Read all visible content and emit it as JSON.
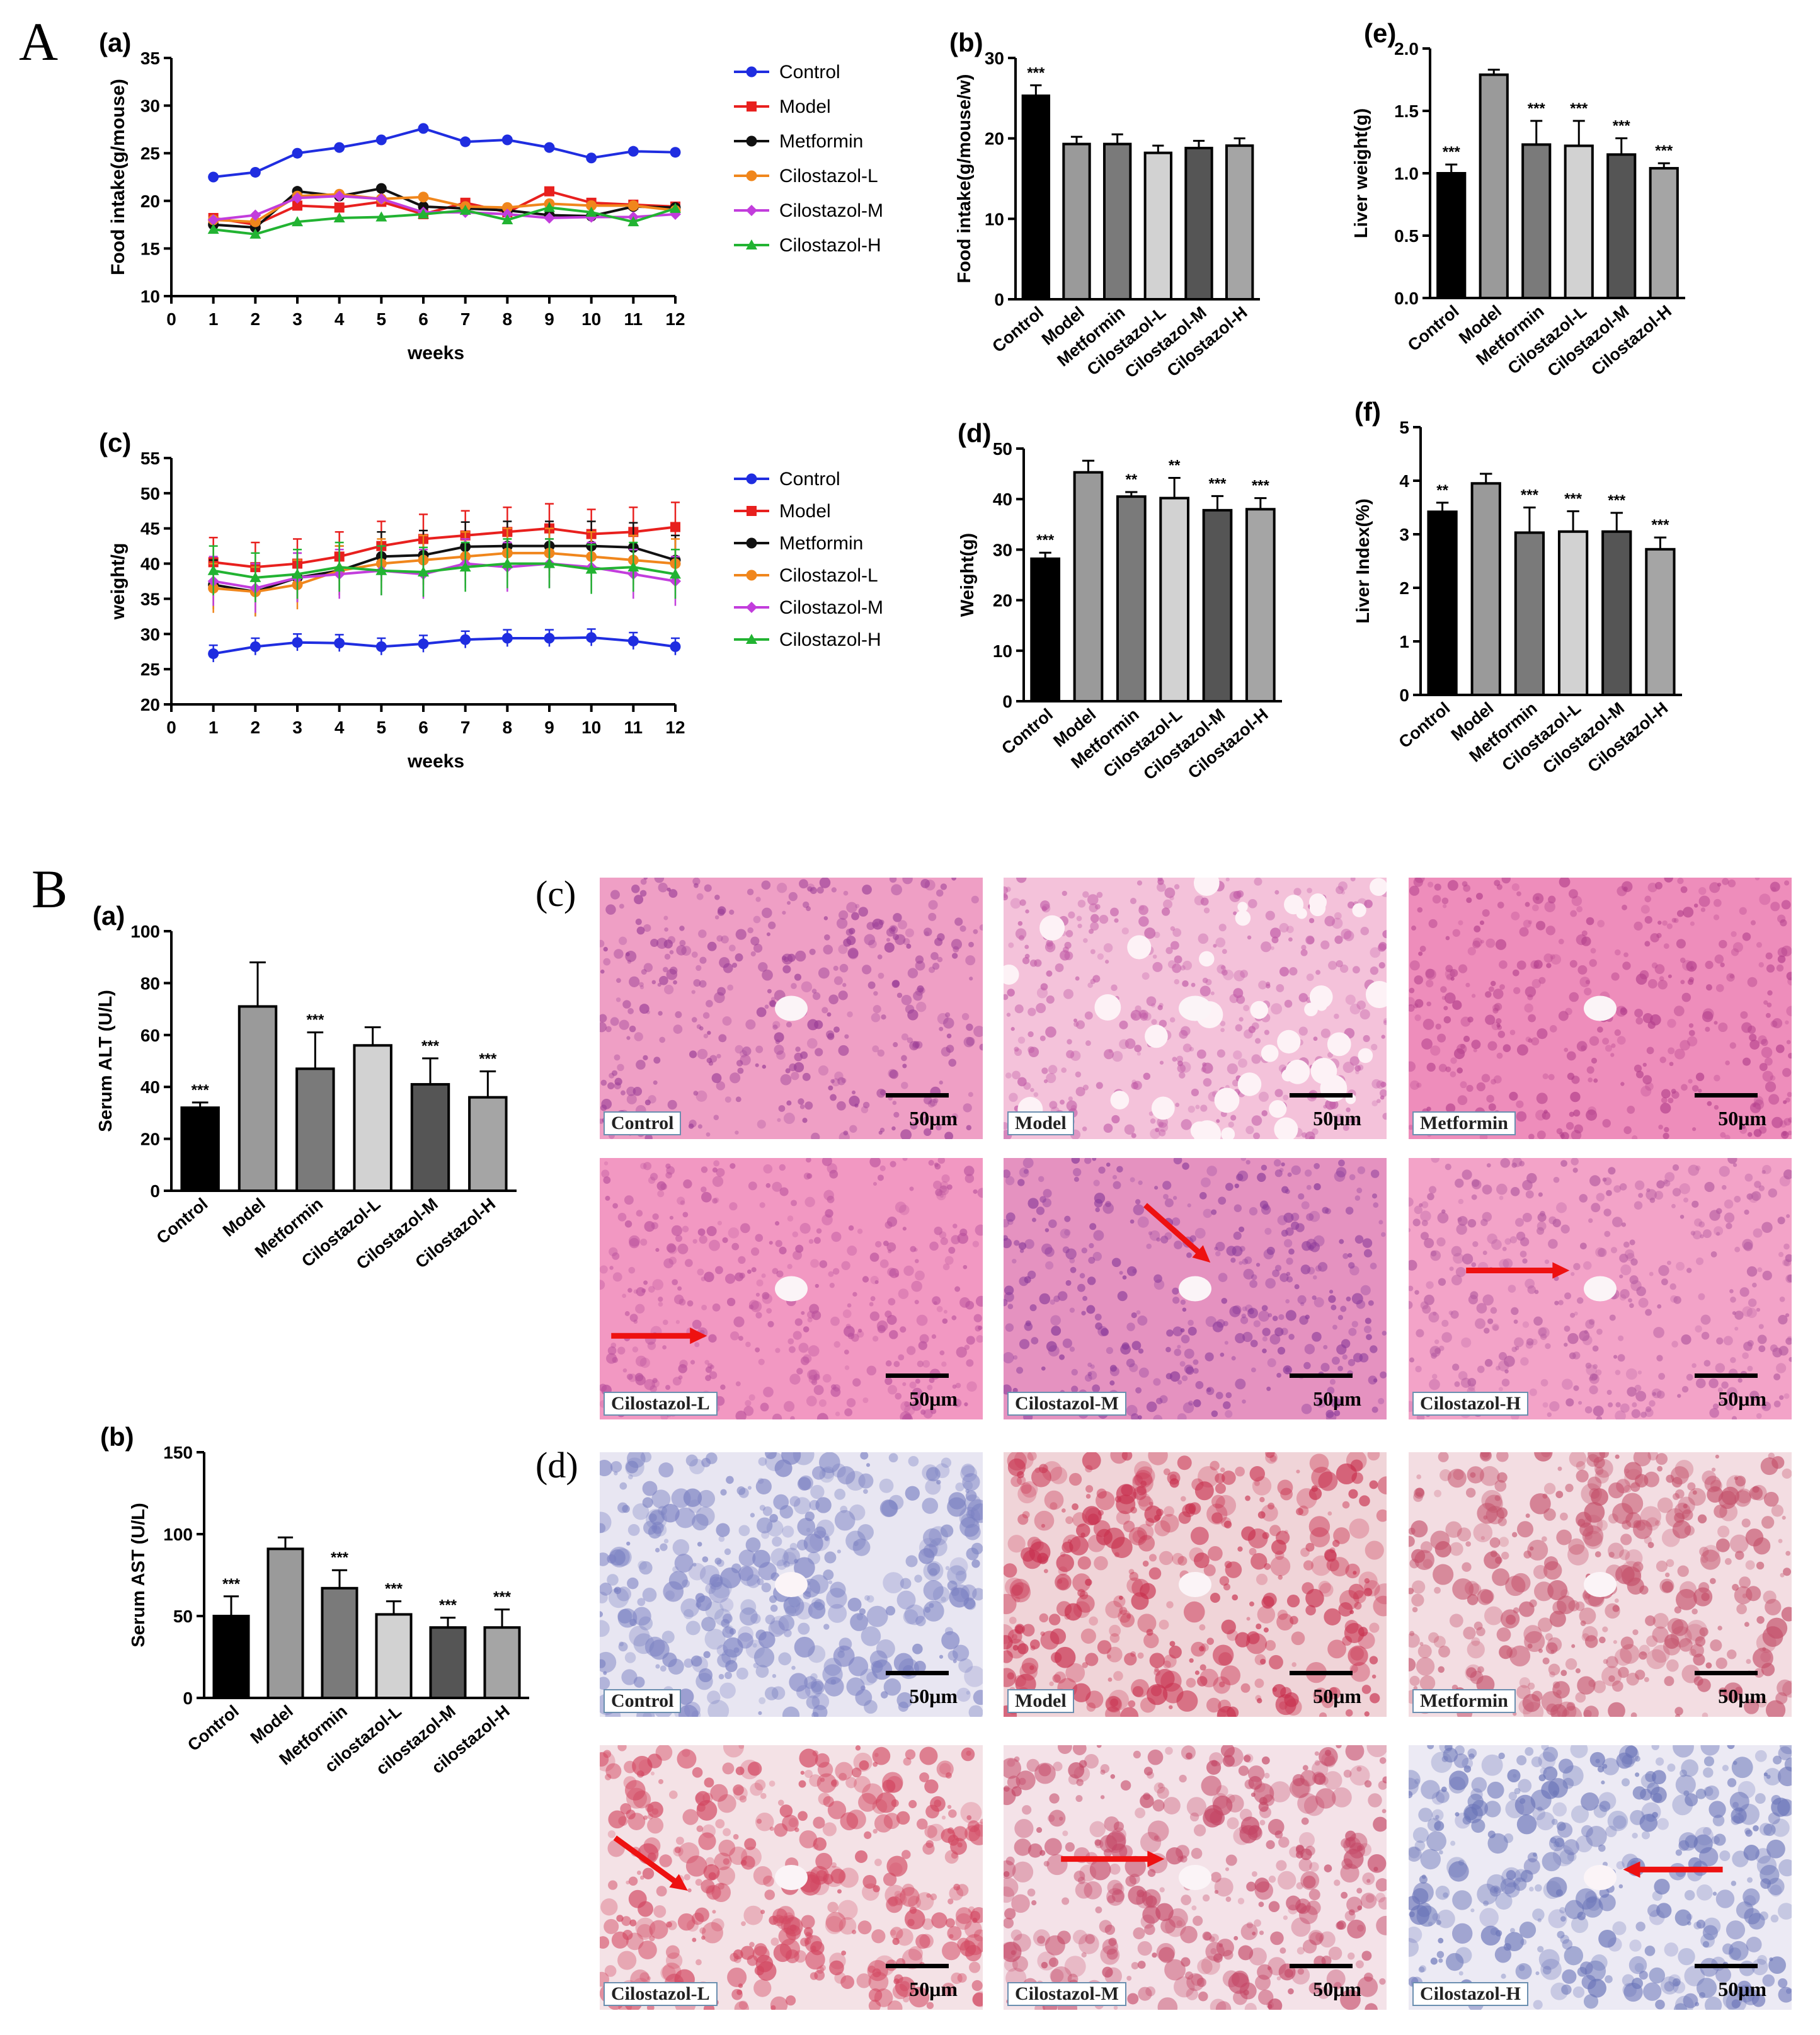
{
  "section_labels": {
    "A": "A",
    "B": "B"
  },
  "colors": {
    "Control": "#1f2de0",
    "Model": "#e8201e",
    "Metformin": "#111111",
    "Cilostazol-L": "#f0861c",
    "Cilostazol-M": "#c23ddc",
    "Cilostazol-H": "#22b332",
    "bars": [
      "#000000",
      "#9a9a9a",
      "#7a7a7a",
      "#d2d2d2",
      "#555555",
      "#a5a5a5"
    ]
  },
  "chart_data": [
    {
      "panel": "(a)",
      "type": "line",
      "xlabel": "weeks",
      "ylabel": "Food intake(g/mouse)",
      "xlim": [
        0,
        12
      ],
      "ylim": [
        10,
        35
      ],
      "xticks": [
        "0",
        "1",
        "2",
        "3",
        "4",
        "5",
        "6",
        "7",
        "8",
        "9",
        "10",
        "11",
        "12"
      ],
      "yticks": [
        "10",
        "15",
        "20",
        "25",
        "30",
        "35"
      ],
      "x": [
        1,
        2,
        3,
        4,
        5,
        6,
        7,
        8,
        9,
        10,
        11,
        12
      ],
      "series": [
        {
          "name": "Control",
          "values": [
            22.5,
            23.0,
            25.0,
            25.6,
            26.4,
            27.6,
            26.2,
            26.4,
            25.6,
            24.5,
            25.2,
            25.1
          ]
        },
        {
          "name": "Model",
          "values": [
            18.2,
            17.5,
            19.5,
            19.3,
            19.9,
            18.6,
            19.8,
            18.8,
            21.0,
            19.8,
            19.6,
            19.4
          ]
        },
        {
          "name": "Metformin",
          "values": [
            17.5,
            17.2,
            21.0,
            20.5,
            21.3,
            19.4,
            19.2,
            19.0,
            18.5,
            18.4,
            19.4,
            19.3
          ]
        },
        {
          "name": "Cilostazol-L",
          "values": [
            18.0,
            17.8,
            20.5,
            20.7,
            20.2,
            20.4,
            19.4,
            19.3,
            19.7,
            19.5,
            19.5,
            19.0
          ]
        },
        {
          "name": "Cilostazol-M",
          "values": [
            18.0,
            18.5,
            20.3,
            20.5,
            20.2,
            18.8,
            18.8,
            18.6,
            18.2,
            18.3,
            18.3,
            18.6
          ]
        },
        {
          "name": "Cilostazol-H",
          "values": [
            17.0,
            16.5,
            17.8,
            18.2,
            18.3,
            18.6,
            19.0,
            18.0,
            19.3,
            18.8,
            17.8,
            19.2
          ]
        }
      ]
    },
    {
      "panel": "(c)",
      "type": "line",
      "xlabel": "weeks",
      "ylabel": "weight/g",
      "xlim": [
        0,
        12
      ],
      "ylim": [
        20,
        55
      ],
      "xticks": [
        "0",
        "1",
        "2",
        "3",
        "4",
        "5",
        "6",
        "7",
        "8",
        "9",
        "10",
        "11",
        "12"
      ],
      "yticks": [
        "20",
        "25",
        "30",
        "35",
        "40",
        "45",
        "50",
        "55"
      ],
      "x": [
        1,
        2,
        3,
        4,
        5,
        6,
        7,
        8,
        9,
        10,
        11,
        12
      ],
      "series": [
        {
          "name": "Control",
          "values": [
            27.2,
            28.2,
            28.8,
            28.7,
            28.2,
            28.6,
            29.2,
            29.4,
            29.4,
            29.5,
            29.0,
            28.2
          ]
        },
        {
          "name": "Model",
          "values": [
            40.2,
            39.5,
            40.0,
            41.0,
            42.5,
            43.5,
            44.0,
            44.5,
            45.0,
            44.2,
            44.5,
            45.2
          ]
        },
        {
          "name": "Metformin",
          "values": [
            37.0,
            36.0,
            38.0,
            39.0,
            41.0,
            41.2,
            42.4,
            42.5,
            42.5,
            42.5,
            42.3,
            40.5
          ]
        },
        {
          "name": "Cilostazol-L",
          "values": [
            36.5,
            36.0,
            37.0,
            39.0,
            40.0,
            40.5,
            41.0,
            41.5,
            41.5,
            41.0,
            40.5,
            40.0
          ]
        },
        {
          "name": "Cilostazol-M",
          "values": [
            37.5,
            36.5,
            38.0,
            38.5,
            39.0,
            38.5,
            40.0,
            39.5,
            40.0,
            39.5,
            38.5,
            37.5
          ]
        },
        {
          "name": "Cilostazol-H",
          "values": [
            39.0,
            38.0,
            38.5,
            39.5,
            39.0,
            38.8,
            39.5,
            40.0,
            40.0,
            39.2,
            39.5,
            38.5
          ]
        }
      ]
    },
    {
      "panel": "(b)",
      "type": "bar",
      "ylabel": "Food intake(g/mouse/w)",
      "ylim": [
        0,
        30
      ],
      "yticks": [
        "0",
        "10",
        "20",
        "30"
      ],
      "categories": [
        "Control",
        "Model",
        "Metformin",
        "Cilostazol-L",
        "Cilostazol-M",
        "Cilostazol-H"
      ],
      "values": [
        25.3,
        19.3,
        19.3,
        18.2,
        18.8,
        19.1
      ],
      "errors": [
        1.3,
        0.9,
        1.2,
        0.9,
        0.9,
        0.9
      ],
      "sig": [
        "***",
        "",
        "",
        "",
        "",
        ""
      ]
    },
    {
      "panel": "(e)",
      "type": "bar",
      "ylabel": "Liver weight(g)",
      "ylim": [
        0,
        2.0
      ],
      "yticks": [
        "0.0",
        "0.5",
        "1.0",
        "1.5",
        "2.0"
      ],
      "categories": [
        "Control",
        "Model",
        "Metformin",
        "Cilostazol-L",
        "Cilostazol-M",
        "Cilostazol-H"
      ],
      "values": [
        1.0,
        1.79,
        1.23,
        1.22,
        1.15,
        1.04
      ],
      "errors": [
        0.07,
        0.04,
        0.19,
        0.2,
        0.13,
        0.04
      ],
      "sig": [
        "***",
        "",
        "***",
        "***",
        "***",
        "***"
      ]
    },
    {
      "panel": "(d)",
      "type": "bar",
      "ylabel": "Weight(g)",
      "ylim": [
        0,
        50
      ],
      "yticks": [
        "0",
        "10",
        "20",
        "30",
        "40",
        "50"
      ],
      "categories": [
        "Control",
        "Model",
        "Metformin",
        "Cilostazol-L",
        "Cilostazol-M",
        "Cilostazol-H"
      ],
      "values": [
        28.2,
        45.3,
        40.5,
        40.2,
        37.8,
        38.0
      ],
      "errors": [
        1.2,
        2.3,
        0.9,
        4.0,
        2.8,
        2.2
      ],
      "sig": [
        "***",
        "",
        "**",
        "**",
        "***",
        "***"
      ]
    },
    {
      "panel": "(f)",
      "type": "bar",
      "ylabel": "Liver Index(%)",
      "ylim": [
        0,
        5
      ],
      "yticks": [
        "0",
        "1",
        "2",
        "3",
        "4",
        "5"
      ],
      "categories": [
        "Control",
        "Model",
        "Metformin",
        "Cilostazol-L",
        "Cilostazol-M",
        "Cilostazol-H"
      ],
      "values": [
        3.42,
        3.95,
        3.03,
        3.05,
        3.05,
        2.72
      ],
      "errors": [
        0.17,
        0.18,
        0.47,
        0.38,
        0.35,
        0.22
      ],
      "sig": [
        "**",
        "",
        "***",
        "***",
        "***",
        "***"
      ]
    },
    {
      "panel": "(a)",
      "type": "bar",
      "ylabel": "Serum ALT (U/L)",
      "ylim": [
        0,
        100
      ],
      "yticks": [
        "0",
        "20",
        "40",
        "60",
        "80",
        "100"
      ],
      "categories": [
        "Control",
        "Model",
        "Metformin",
        "Cilostazol-L",
        "Cilostazol-M",
        "Cilostazol-H"
      ],
      "values": [
        32,
        71,
        47,
        56,
        41,
        36
      ],
      "errors": [
        2,
        17,
        14,
        7,
        10,
        10
      ],
      "sig": [
        "***",
        "",
        "***",
        "",
        "***",
        "***"
      ]
    },
    {
      "panel": "(b)",
      "type": "bar",
      "ylabel": "Serum AST (U/L)",
      "ylim": [
        0,
        150
      ],
      "yticks": [
        "0",
        "50",
        "100",
        "150"
      ],
      "categories": [
        "Control",
        "Model",
        "Metformin",
        "cilostazol-L",
        "cilostazol-M",
        "cilostazol-H"
      ],
      "values": [
        50,
        91,
        67,
        51,
        43,
        43
      ],
      "errors": [
        12,
        7,
        11,
        8,
        6,
        11
      ],
      "sig": [
        "***",
        "",
        "***",
        "***",
        "***",
        "***"
      ]
    }
  ],
  "histology": [
    {
      "panel": "(c)",
      "scale": "50μm",
      "images": [
        {
          "label": "Control",
          "base": "#ef9fc5",
          "spot": "#9a3d96",
          "arrow": null
        },
        {
          "label": "Model",
          "base": "#f4c2da",
          "spot": "#c05aa6",
          "arrow": null
        },
        {
          "label": "Metformin",
          "base": "#ee8dbb",
          "spot": "#b3408c",
          "arrow": null
        },
        {
          "label": "Cilostazol-L",
          "base": "#f298c2",
          "spot": "#b8509c",
          "arrow": "right-low"
        },
        {
          "label": "Cilostazol-M",
          "base": "#e592c0",
          "spot": "#8a3a9a",
          "arrow": "diag-mid"
        },
        {
          "label": "Cilostazol-H",
          "base": "#f3a3c8",
          "spot": "#b35aa0",
          "arrow": "right-mid"
        }
      ]
    },
    {
      "panel": "(d)",
      "scale": "50μm",
      "images": [
        {
          "label": "Control",
          "base": "#e8e6f2",
          "spot": "#7a80c2",
          "arrow": null
        },
        {
          "label": "Model",
          "base": "#f0d4d8",
          "spot": "#c8304e",
          "arrow": null
        },
        {
          "label": "Metformin",
          "base": "#f3dde2",
          "spot": "#c4506a",
          "arrow": null
        },
        {
          "label": "Cilostazol-L",
          "base": "#f4e2e6",
          "spot": "#d24660",
          "arrow": "diag-left"
        },
        {
          "label": "Cilostazol-M",
          "base": "#f4e2e8",
          "spot": "#c44766",
          "arrow": "right-mid"
        },
        {
          "label": "Cilostazol-H",
          "base": "#eceaf4",
          "spot": "#6a74b8",
          "arrow": "left-mid"
        }
      ]
    }
  ]
}
